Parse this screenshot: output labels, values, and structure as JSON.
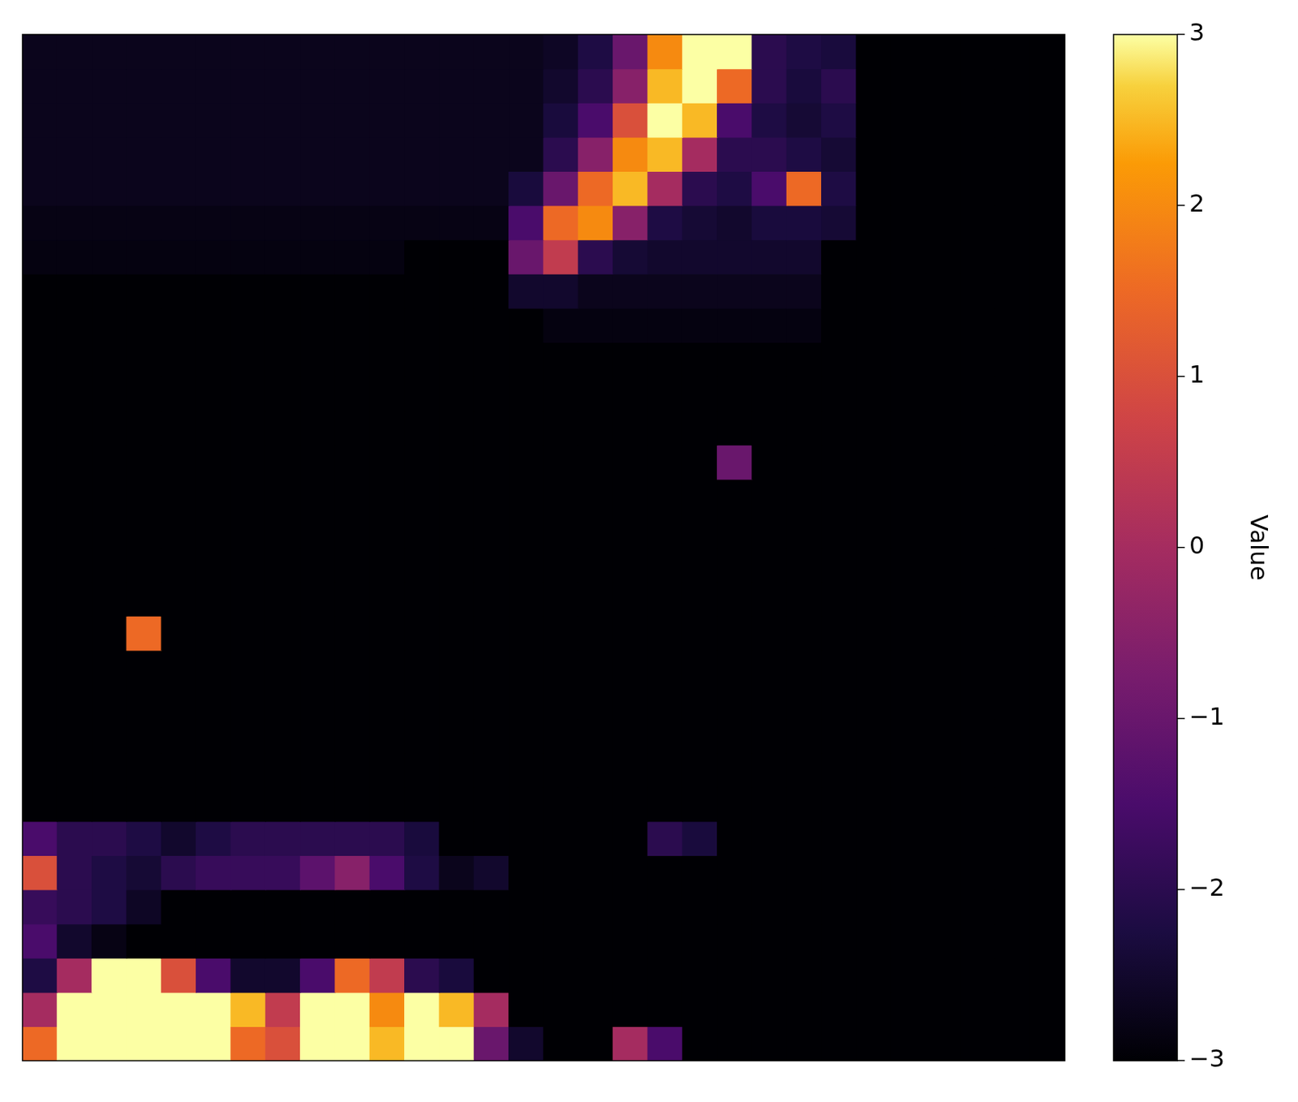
{
  "chart_data": {
    "type": "heatmap",
    "color": "inferno",
    "tick_labels": false,
    "colorbar": {
      "label": "Value",
      "range": [
        -3,
        3
      ],
      "ticks": [
        {
          "value": -3,
          "label": "−3"
        },
        {
          "value": -2,
          "label": "−2"
        },
        {
          "value": -1,
          "label": "−1"
        },
        0,
        1,
        2,
        3
      ]
    },
    "cells": [
      [
        -2.7,
        -2.7,
        -2.7,
        -2.7,
        -2.7,
        -2.7,
        -2.7,
        -2.7,
        -2.7,
        -2.7,
        -2.7,
        -2.7,
        -2.7,
        -2.7,
        -2.7,
        -2.6,
        -2.2,
        -1,
        2,
        3,
        3,
        -2,
        -2.2,
        -2.3,
        -3,
        -3,
        -3,
        -3,
        -3,
        -3
      ],
      [
        -2.7,
        -2.7,
        -2.7,
        -2.7,
        -2.7,
        -2.7,
        -2.7,
        -2.7,
        -2.7,
        -2.7,
        -2.7,
        -2.7,
        -2.7,
        -2.7,
        -2.7,
        -2.5,
        -2,
        -0.5,
        2.5,
        3,
        1.5,
        -2,
        -2.3,
        -2,
        -3,
        -3,
        -3,
        -3,
        -3,
        -3
      ],
      [
        -2.7,
        -2.7,
        -2.7,
        -2.7,
        -2.7,
        -2.7,
        -2.7,
        -2.7,
        -2.7,
        -2.7,
        -2.7,
        -2.7,
        -2.7,
        -2.7,
        -2.7,
        -2.3,
        -1.5,
        1,
        3,
        2.5,
        -1.5,
        -2.2,
        -2.4,
        -2.2,
        -3,
        -3,
        -3,
        -3,
        -3,
        -3
      ],
      [
        -2.7,
        -2.7,
        -2.7,
        -2.7,
        -2.7,
        -2.7,
        -2.7,
        -2.7,
        -2.7,
        -2.7,
        -2.7,
        -2.7,
        -2.7,
        -2.7,
        -2.7,
        -2,
        -0.5,
        2,
        2.5,
        0,
        -2,
        -2,
        -2.2,
        -2.4,
        -3,
        -3,
        -3,
        -3,
        -3,
        -3
      ],
      [
        -2.7,
        -2.7,
        -2.7,
        -2.7,
        -2.7,
        -2.7,
        -2.7,
        -2.7,
        -2.7,
        -2.7,
        -2.7,
        -2.7,
        -2.7,
        -2.7,
        -2.3,
        -1,
        1.5,
        2.5,
        0,
        -2,
        -2.2,
        -1.5,
        1.5,
        -2.2,
        -3,
        -3,
        -3,
        -3,
        -3,
        -3
      ],
      [
        -2.8,
        -2.8,
        -2.8,
        -2.8,
        -2.8,
        -2.8,
        -2.8,
        -2.8,
        -2.8,
        -2.8,
        -2.8,
        -2.8,
        -2.8,
        -2.8,
        -1.5,
        1.5,
        2,
        -0.5,
        -2.2,
        -2.4,
        -2.5,
        -2.3,
        -2.3,
        -2.4,
        -3,
        -3,
        -3,
        -3,
        -3,
        -3
      ],
      [
        -2.85,
        -2.85,
        -2.85,
        -2.85,
        -2.85,
        -2.85,
        -2.85,
        -2.85,
        -2.85,
        -2.85,
        -2.85,
        -3,
        -3,
        -3,
        -1,
        0.5,
        -2,
        -2.4,
        -2.5,
        -2.5,
        -2.5,
        -2.5,
        -2.5,
        -3,
        -3,
        -3,
        -3,
        -3,
        -3,
        -3
      ],
      [
        -3,
        -3,
        -3,
        -3,
        -3,
        -3,
        -3,
        -3,
        -3,
        -3,
        -3,
        -3,
        -3,
        -3,
        -2.5,
        -2.5,
        -2.7,
        -2.7,
        -2.7,
        -2.7,
        -2.7,
        -2.7,
        -2.7,
        -3,
        -3,
        -3,
        -3,
        -3,
        -3,
        -3
      ],
      [
        -3,
        -3,
        -3,
        -3,
        -3,
        -3,
        -3,
        -3,
        -3,
        -3,
        -3,
        -3,
        -3,
        -3,
        -3,
        -2.85,
        -2.85,
        -2.85,
        -2.85,
        -2.85,
        -2.85,
        -2.85,
        -2.85,
        -3,
        -3,
        -3,
        -3,
        -3,
        -3,
        -3
      ],
      [
        -3,
        -3,
        -3,
        -3,
        -3,
        -3,
        -3,
        -3,
        -3,
        -3,
        -3,
        -3,
        -3,
        -3,
        -3,
        -3,
        -3,
        -3,
        -3,
        -3,
        -3,
        -3,
        -3,
        -3,
        -3,
        -3,
        -3,
        -3,
        -3,
        -3
      ],
      [
        -3,
        -3,
        -3,
        -3,
        -3,
        -3,
        -3,
        -3,
        -3,
        -3,
        -3,
        -3,
        -3,
        -3,
        -3,
        -3,
        -3,
        -3,
        -3,
        -3,
        -3,
        -3,
        -3,
        -3,
        -3,
        -3,
        -3,
        -3,
        -3,
        -3
      ],
      [
        -3,
        -3,
        -3,
        -3,
        -3,
        -3,
        -3,
        -3,
        -3,
        -3,
        -3,
        -3,
        -3,
        -3,
        -3,
        -3,
        -3,
        -3,
        -3,
        -3,
        -3,
        -3,
        -3,
        -3,
        -3,
        -3,
        -3,
        -3,
        -3,
        -3
      ],
      [
        -3,
        -3,
        -3,
        -3,
        -3,
        -3,
        -3,
        -3,
        -3,
        -3,
        -3,
        -3,
        -3,
        -3,
        -3,
        -3,
        -3,
        -3,
        -3,
        -3,
        -1,
        -3,
        -3,
        -3,
        -3,
        -3,
        -3,
        -3,
        -3,
        -3
      ],
      [
        -3,
        -3,
        -3,
        -3,
        -3,
        -3,
        -3,
        -3,
        -3,
        -3,
        -3,
        -3,
        -3,
        -3,
        -3,
        -3,
        -3,
        -3,
        -3,
        -3,
        -3,
        -3,
        -3,
        -3,
        -3,
        -3,
        -3,
        -3,
        -3,
        -3
      ],
      [
        -3,
        -3,
        -3,
        -3,
        -3,
        -3,
        -3,
        -3,
        -3,
        -3,
        -3,
        -3,
        -3,
        -3,
        -3,
        -3,
        -3,
        -3,
        -3,
        -3,
        -3,
        -3,
        -3,
        -3,
        -3,
        -3,
        -3,
        -3,
        -3,
        -3
      ],
      [
        -3,
        -3,
        -3,
        -3,
        -3,
        -3,
        -3,
        -3,
        -3,
        -3,
        -3,
        -3,
        -3,
        -3,
        -3,
        -3,
        -3,
        -3,
        -3,
        -3,
        -3,
        -3,
        -3,
        -3,
        -3,
        -3,
        -3,
        -3,
        -3,
        -3
      ],
      [
        -3,
        -3,
        -3,
        -3,
        -3,
        -3,
        -3,
        -3,
        -3,
        -3,
        -3,
        -3,
        -3,
        -3,
        -3,
        -3,
        -3,
        -3,
        -3,
        -3,
        -3,
        -3,
        -3,
        -3,
        -3,
        -3,
        -3,
        -3,
        -3,
        -3
      ],
      [
        -3,
        -3,
        -3,
        1.5,
        -3,
        -3,
        -3,
        -3,
        -3,
        -3,
        -3,
        -3,
        -3,
        -3,
        -3,
        -3,
        -3,
        -3,
        -3,
        -3,
        -3,
        -3,
        -3,
        -3,
        -3,
        -3,
        -3,
        -3,
        -3,
        -3
      ],
      [
        -3,
        -3,
        -3,
        -3,
        -3,
        -3,
        -3,
        -3,
        -3,
        -3,
        -3,
        -3,
        -3,
        -3,
        -3,
        -3,
        -3,
        -3,
        -3,
        -3,
        -3,
        -3,
        -3,
        -3,
        -3,
        -3,
        -3,
        -3,
        -3,
        -3
      ],
      [
        -3,
        -3,
        -3,
        -3,
        -3,
        -3,
        -3,
        -3,
        -3,
        -3,
        -3,
        -3,
        -3,
        -3,
        -3,
        -3,
        -3,
        -3,
        -3,
        -3,
        -3,
        -3,
        -3,
        -3,
        -3,
        -3,
        -3,
        -3,
        -3,
        -3
      ],
      [
        -3,
        -3,
        -3,
        -3,
        -3,
        -3,
        -3,
        -3,
        -3,
        -3,
        -3,
        -3,
        -3,
        -3,
        -3,
        -3,
        -3,
        -3,
        -3,
        -3,
        -3,
        -3,
        -3,
        -3,
        -3,
        -3,
        -3,
        -3,
        -3,
        -3
      ],
      [
        -3,
        -3,
        -3,
        -3,
        -3,
        -3,
        -3,
        -3,
        -3,
        -3,
        -3,
        -3,
        -3,
        -3,
        -3,
        -3,
        -3,
        -3,
        -3,
        -3,
        -3,
        -3,
        -3,
        -3,
        -3,
        -3,
        -3,
        -3,
        -3,
        -3
      ],
      [
        -3,
        -3,
        -3,
        -3,
        -3,
        -3,
        -3,
        -3,
        -3,
        -3,
        -3,
        -3,
        -3,
        -3,
        -3,
        -3,
        -3,
        -3,
        -3,
        -3,
        -3,
        -3,
        -3,
        -3,
        -3,
        -3,
        -3,
        -3,
        -3,
        -3
      ],
      [
        -1.5,
        -2,
        -2,
        -2.2,
        -2.5,
        -2.2,
        -2,
        -2,
        -2,
        -2,
        -2,
        -2.3,
        -3,
        -3,
        -3,
        -3,
        -3,
        -3,
        -2,
        -2.3,
        -3,
        -3,
        -3,
        -3,
        -3,
        -3,
        -3,
        -3,
        -3,
        -3
      ],
      [
        1,
        -2,
        -2.2,
        -2.4,
        -2,
        -1.8,
        -1.8,
        -1.8,
        -1.2,
        -0.5,
        -1.5,
        -2.2,
        -2.7,
        -2.5,
        -3,
        -3,
        -3,
        -3,
        -3,
        -3,
        -3,
        -3,
        -3,
        -3,
        -3,
        -3,
        -3,
        -3,
        -3,
        -3
      ],
      [
        -1.8,
        -2,
        -2.2,
        -2.6,
        -3,
        -3,
        -3,
        -3,
        -3,
        -3,
        -3,
        -3,
        -3,
        -3,
        -3,
        -3,
        -3,
        -3,
        -3,
        -3,
        -3,
        -3,
        -3,
        -3,
        -3,
        -3,
        -3,
        -3,
        -3,
        -3
      ],
      [
        -1.5,
        -2.5,
        -2.8,
        -3,
        -3,
        -3,
        -3,
        -3,
        -3,
        -3,
        -3,
        -3,
        -3,
        -3,
        -3,
        -3,
        -3,
        -3,
        -3,
        -3,
        -3,
        -3,
        -3,
        -3,
        -3,
        -3,
        -3,
        -3,
        -3,
        -3
      ],
      [
        -2.2,
        0,
        3,
        3,
        1,
        -1.5,
        -2.5,
        -2.5,
        -1.5,
        1.5,
        0.5,
        -2,
        -2.3,
        -3,
        -3,
        -3,
        -3,
        -3,
        -3,
        -3,
        -3,
        -3,
        -3,
        -3,
        -3,
        -3,
        -3,
        -3,
        -3,
        -3
      ],
      [
        0,
        3,
        3,
        3,
        3,
        3,
        2.5,
        0.5,
        3,
        3,
        2,
        3,
        2.5,
        0,
        -3,
        -3,
        -3,
        -3,
        -3,
        -3,
        -3,
        -3,
        -3,
        -3,
        -3,
        -3,
        -3,
        -3,
        -3,
        -3
      ],
      [
        1.5,
        3,
        3,
        3,
        3,
        3,
        1.5,
        1,
        3,
        3,
        2.5,
        3,
        3,
        -1,
        -2.5,
        -3,
        -3,
        0,
        -1.5,
        -3,
        -3,
        -3,
        -3,
        -3,
        -3,
        -3,
        -3,
        -3,
        -3,
        -3
      ]
    ]
  }
}
